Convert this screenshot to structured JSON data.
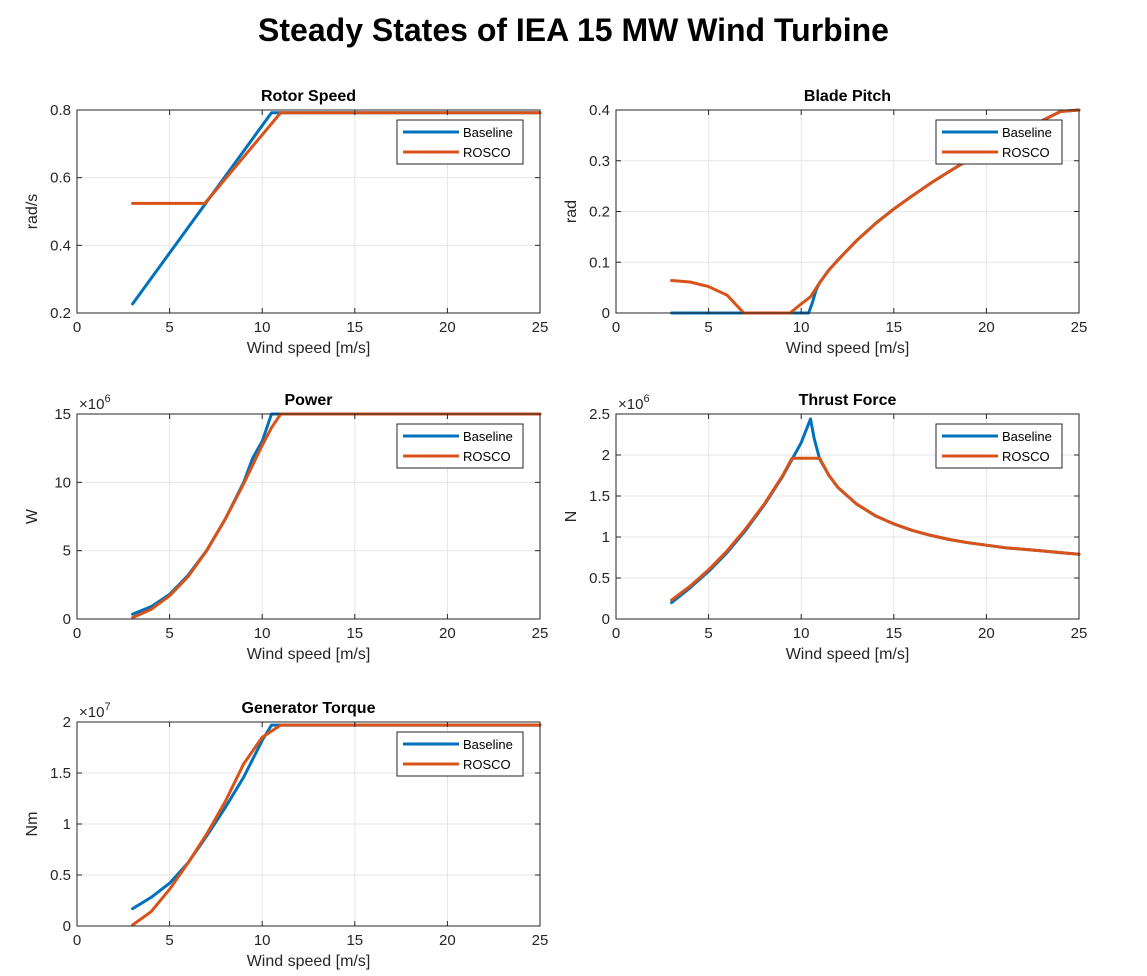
{
  "figure_title": "Steady States of IEA 15 MW Wind Turbine",
  "colors": {
    "baseline": "#0072BD",
    "rosco": "#D95319",
    "grid": "#e6e6e6",
    "axes": "#262626"
  },
  "chart_data": [
    {
      "id": "rotor-speed",
      "type": "line",
      "title": "Rotor Speed",
      "xlabel": "Wind speed [m/s]",
      "ylabel": "rad/s",
      "xlim": [
        0,
        25
      ],
      "ylim": [
        0.2,
        0.8
      ],
      "xticks": [
        0,
        5,
        10,
        15,
        20,
        25
      ],
      "xticklabels": [
        "0",
        "5",
        "10",
        "15",
        "20",
        "25"
      ],
      "yticks": [
        0.2,
        0.4,
        0.6,
        0.8
      ],
      "yticklabels": [
        "0.2",
        "0.4",
        "0.6",
        "0.8"
      ],
      "exponent_base": "",
      "exponent_power": "",
      "grid": true,
      "legend_position": "top-right",
      "series": [
        {
          "name": "Baseline",
          "x": [
            3,
            10.5,
            25
          ],
          "y": [
            0.227,
            0.792,
            0.792
          ]
        },
        {
          "name": "ROSCO",
          "x": [
            3,
            6.9,
            11,
            25
          ],
          "y": [
            0.524,
            0.524,
            0.792,
            0.792
          ]
        }
      ]
    },
    {
      "id": "blade-pitch",
      "type": "line",
      "title": "Blade Pitch",
      "xlabel": "Wind speed [m/s]",
      "ylabel": "rad",
      "xlim": [
        0,
        25
      ],
      "ylim": [
        0,
        0.4
      ],
      "xticks": [
        0,
        5,
        10,
        15,
        20,
        25
      ],
      "xticklabels": [
        "0",
        "5",
        "10",
        "15",
        "20",
        "25"
      ],
      "yticks": [
        0,
        0.1,
        0.2,
        0.3,
        0.4
      ],
      "yticklabels": [
        "0",
        "0.1",
        "0.2",
        "0.3",
        "0.4"
      ],
      "exponent_base": "",
      "exponent_power": "",
      "grid": true,
      "legend_position": "top-right",
      "series": [
        {
          "name": "Baseline",
          "x": [
            3,
            10.4,
            10.6,
            10.8,
            11,
            11.5,
            12,
            13,
            14,
            15,
            16,
            17,
            18,
            19,
            20,
            21,
            22,
            23,
            24,
            25
          ],
          "y": [
            0,
            0,
            0.02,
            0.045,
            0.06,
            0.085,
            0.105,
            0.143,
            0.176,
            0.205,
            0.231,
            0.256,
            0.279,
            0.301,
            0.322,
            0.342,
            0.361,
            0.379,
            0.397,
            0.4
          ]
        },
        {
          "name": "ROSCO",
          "x": [
            3,
            4,
            5,
            6,
            6.9,
            9.4,
            10,
            10.5,
            11,
            11.5,
            12,
            13,
            14,
            15,
            16,
            17,
            18,
            19,
            20,
            21,
            22,
            23,
            24,
            25
          ],
          "y": [
            0.064,
            0.061,
            0.052,
            0.035,
            0,
            0,
            0.018,
            0.032,
            0.06,
            0.085,
            0.105,
            0.143,
            0.176,
            0.205,
            0.231,
            0.256,
            0.279,
            0.301,
            0.322,
            0.342,
            0.361,
            0.379,
            0.397,
            0.4
          ]
        }
      ]
    },
    {
      "id": "power",
      "type": "line",
      "title": "Power",
      "xlabel": "Wind speed [m/s]",
      "ylabel": "W",
      "xlim": [
        0,
        25
      ],
      "ylim": [
        0,
        15000000
      ],
      "xticks": [
        0,
        5,
        10,
        15,
        20,
        25
      ],
      "xticklabels": [
        "0",
        "5",
        "10",
        "15",
        "20",
        "25"
      ],
      "yticks": [
        0,
        5000000,
        10000000,
        15000000
      ],
      "yticklabels": [
        "0",
        "5",
        "10",
        "15"
      ],
      "exponent_base": "×10",
      "exponent_power": "6",
      "grid": true,
      "legend_position": "top-right",
      "series": [
        {
          "name": "Baseline",
          "x": [
            3,
            4,
            5,
            6,
            7,
            8,
            9,
            9.5,
            10,
            10.5,
            25
          ],
          "y": [
            350000,
            900000,
            1800000,
            3200000,
            5000000,
            7300000,
            10000000,
            11800000,
            13000000,
            15000000,
            15000000
          ]
        },
        {
          "name": "ROSCO",
          "x": [
            3,
            4,
            5,
            6,
            7,
            8,
            9,
            9.5,
            10,
            10.5,
            11,
            25
          ],
          "y": [
            100000,
            700000,
            1700000,
            3100000,
            5000000,
            7300000,
            9900000,
            11300000,
            12700000,
            14000000,
            15000000,
            15000000
          ]
        }
      ]
    },
    {
      "id": "thrust-force",
      "type": "line",
      "title": "Thrust Force",
      "xlabel": "Wind speed [m/s]",
      "ylabel": "N",
      "xlim": [
        0,
        25
      ],
      "ylim": [
        0,
        2500000
      ],
      "xticks": [
        0,
        5,
        10,
        15,
        20,
        25
      ],
      "xticklabels": [
        "0",
        "5",
        "10",
        "15",
        "20",
        "25"
      ],
      "yticks": [
        0,
        500000,
        1000000,
        1500000,
        2000000,
        2500000
      ],
      "yticklabels": [
        "0",
        "0.5",
        "1",
        "1.5",
        "2",
        "2.5"
      ],
      "exponent_base": "×10",
      "exponent_power": "6",
      "grid": true,
      "legend_position": "top-right",
      "series": [
        {
          "name": "Baseline",
          "x": [
            3,
            4,
            5,
            6,
            7,
            8,
            9,
            10,
            10.5,
            10.7,
            11,
            11.5,
            12,
            13,
            14,
            15,
            16,
            17,
            18,
            19,
            20,
            21,
            22,
            23,
            24,
            25
          ],
          "y": [
            200000,
            380000,
            580000,
            810000,
            1080000,
            1390000,
            1740000,
            2150000,
            2440000,
            2200000,
            1950000,
            1750000,
            1600000,
            1400000,
            1260000,
            1160000,
            1080000,
            1020000,
            970000,
            930000,
            900000,
            870000,
            850000,
            830000,
            810000,
            790000
          ]
        },
        {
          "name": "ROSCO",
          "x": [
            3,
            4,
            5,
            6,
            7,
            8,
            9,
            9.5,
            11,
            11.5,
            12,
            13,
            14,
            15,
            16,
            17,
            18,
            19,
            20,
            21,
            22,
            23,
            24,
            25
          ],
          "y": [
            230000,
            400000,
            600000,
            830000,
            1100000,
            1400000,
            1750000,
            1960000,
            1960000,
            1750000,
            1600000,
            1400000,
            1260000,
            1160000,
            1080000,
            1020000,
            970000,
            930000,
            900000,
            870000,
            850000,
            830000,
            810000,
            790000
          ]
        }
      ]
    },
    {
      "id": "generator-torque",
      "type": "line",
      "title": "Generator Torque",
      "xlabel": "Wind speed [m/s]",
      "ylabel": "Nm",
      "xlim": [
        0,
        25
      ],
      "ylim": [
        0,
        20000000
      ],
      "xticks": [
        0,
        5,
        10,
        15,
        20,
        25
      ],
      "xticklabels": [
        "0",
        "5",
        "10",
        "15",
        "20",
        "25"
      ],
      "yticks": [
        0,
        5000000,
        10000000,
        15000000,
        20000000
      ],
      "yticklabels": [
        "0",
        "0.5",
        "1",
        "1.5",
        "2"
      ],
      "exponent_base": "×10",
      "exponent_power": "7",
      "grid": true,
      "legend_position": "top-right",
      "series": [
        {
          "name": "Baseline",
          "x": [
            3,
            4,
            5,
            6,
            7,
            8,
            9,
            10,
            10.5,
            25
          ],
          "y": [
            1700000,
            2800000,
            4200000,
            6200000,
            8800000,
            11600000,
            14600000,
            18200000,
            19700000,
            19700000
          ]
        },
        {
          "name": "ROSCO",
          "x": [
            3,
            4,
            5,
            6,
            7,
            8,
            9,
            10,
            11,
            25
          ],
          "y": [
            100000,
            1400000,
            3600000,
            6200000,
            9000000,
            12200000,
            15900000,
            18500000,
            19700000,
            19700000
          ]
        }
      ]
    }
  ]
}
